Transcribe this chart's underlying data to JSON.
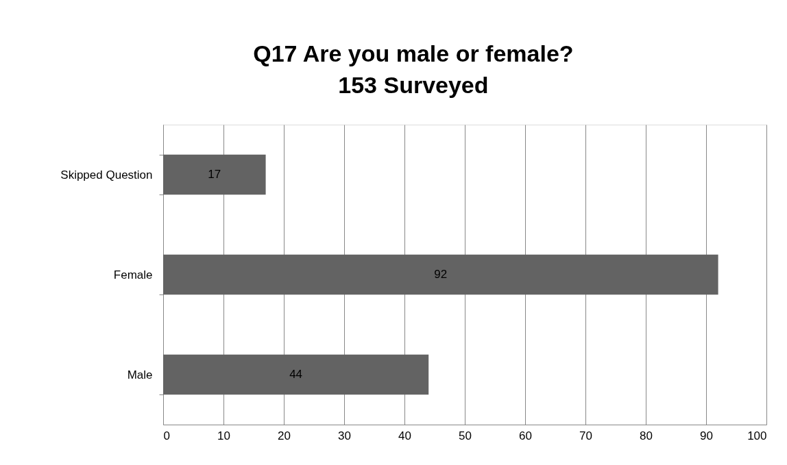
{
  "chart_data": {
    "type": "bar",
    "orientation": "horizontal",
    "title": "Q17 Are you male or female?\n153 Surveyed",
    "categories": [
      "Skipped Question",
      "Female",
      "Male"
    ],
    "values": [
      17,
      92,
      44
    ],
    "color": "#636363",
    "xlim": [
      0,
      100
    ],
    "xticks": [
      0,
      10,
      20,
      30,
      40,
      50,
      60,
      70,
      80,
      90,
      100
    ],
    "grid": "x",
    "data_labels": true
  }
}
